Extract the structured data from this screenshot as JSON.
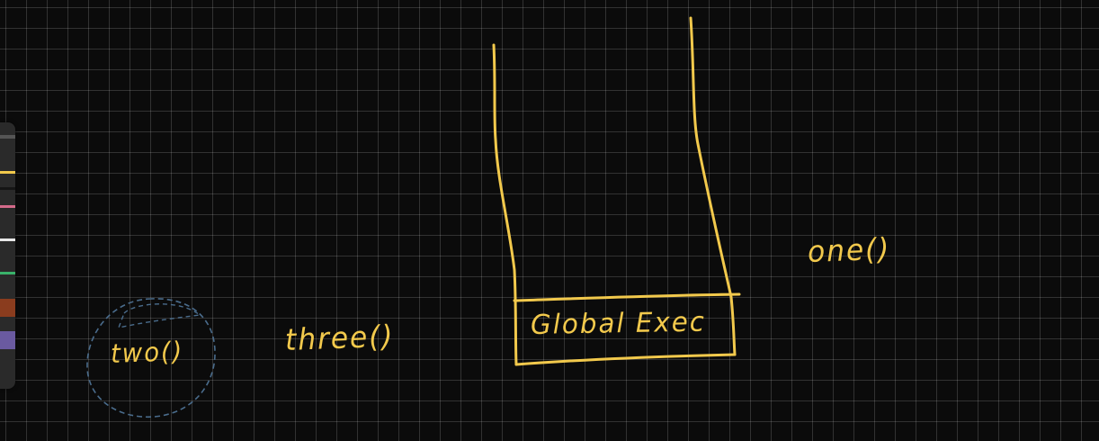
{
  "canvas": {
    "background": "#0b0b0b",
    "grid_color": "#2a2a2a",
    "ink_color": "#f2c94c",
    "selection_color": "#4a6c8c"
  },
  "toolbar": {
    "colors": [
      {
        "name": "yellow",
        "color": "#f2c94c"
      },
      {
        "name": "black",
        "color": "#151515"
      },
      {
        "name": "pink",
        "color": "#d46a8a"
      },
      {
        "name": "white",
        "color": "#e8e8e8"
      },
      {
        "name": "green",
        "color": "#39b26a"
      },
      {
        "name": "brown",
        "color": "#8a3c1e"
      },
      {
        "name": "purple",
        "color": "#6a5aa0"
      }
    ]
  },
  "labels": {
    "two": "two()",
    "three": "three()",
    "one": "one()",
    "global_exec": "Global Exec"
  }
}
